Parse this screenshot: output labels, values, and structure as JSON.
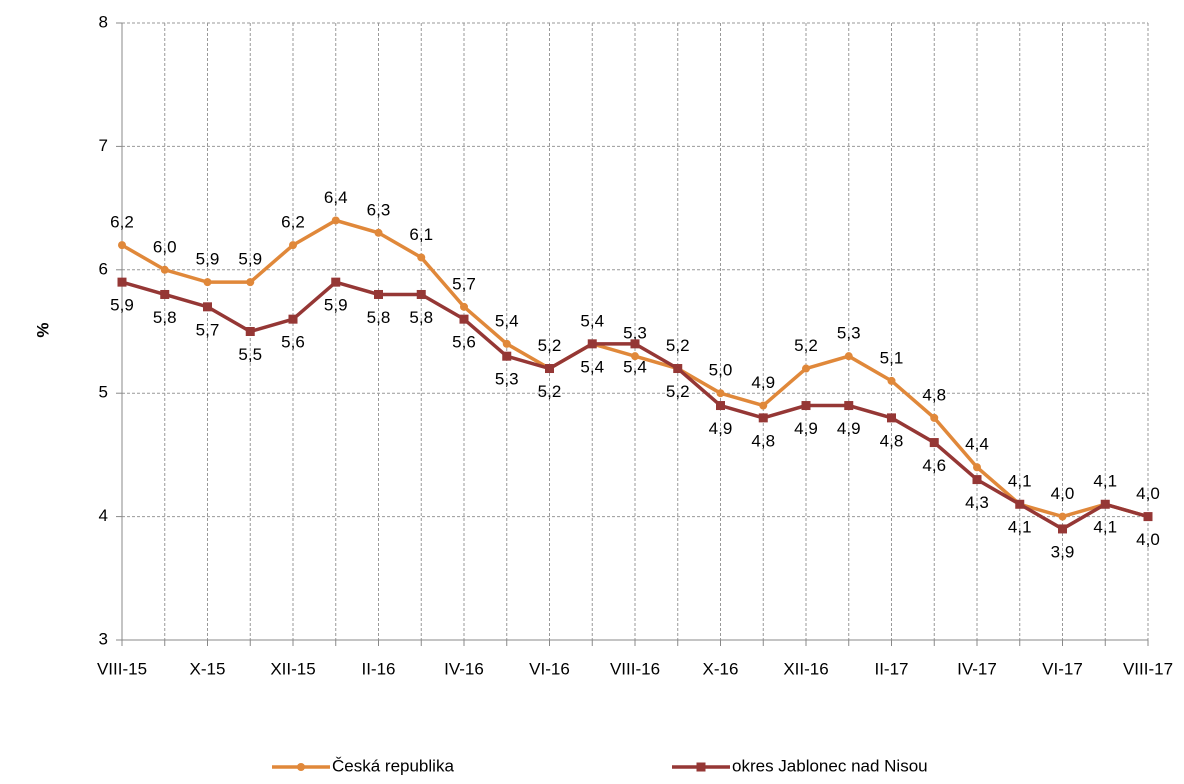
{
  "chart_data": {
    "type": "line",
    "y_label": "%",
    "categories": [
      "VIII-15",
      null,
      "X-15",
      null,
      "XII-15",
      null,
      "II-16",
      null,
      "IV-16",
      null,
      "VI-16",
      null,
      "VIII-16",
      null,
      "X-16",
      null,
      "XII-16",
      null,
      "II-17",
      null,
      "IV-17",
      null,
      "VI-17",
      null,
      "VIII-17"
    ],
    "series": [
      {
        "name": "Česká republika",
        "color": "#e0883a",
        "values": [
          6.2,
          6.0,
          5.9,
          5.9,
          6.2,
          6.4,
          6.3,
          6.1,
          5.7,
          5.4,
          5.2,
          5.4,
          5.3,
          5.2,
          5.0,
          4.9,
          5.2,
          5.3,
          5.1,
          4.8,
          4.4,
          4.1,
          4.0,
          4.1,
          4.0
        ],
        "value_labels": [
          "6,2",
          "6,0",
          "5,9",
          "5,9",
          "6,2",
          "6,4",
          "6,3",
          "6,1",
          "5,7",
          "5,4",
          "5,2",
          "5,4",
          "5,3",
          "5,2",
          "5,0",
          "4,9",
          "5,2",
          "5,3",
          "5,1",
          "4,8",
          "4,4",
          "4,1",
          "4,0",
          "4,1",
          "4,0"
        ],
        "marker": "circle",
        "label_position": "above"
      },
      {
        "name": "okres Jablonec nad Nisou",
        "color": "#953735",
        "values": [
          5.9,
          5.8,
          5.7,
          5.5,
          5.6,
          5.9,
          5.8,
          5.8,
          5.6,
          5.3,
          5.2,
          5.4,
          5.4,
          5.2,
          4.9,
          4.8,
          4.9,
          4.9,
          4.8,
          4.6,
          4.3,
          4.1,
          3.9,
          4.1,
          4.0
        ],
        "value_labels": [
          "5,9",
          "5,8",
          "5,7",
          "5,5",
          "5,6",
          "5,9",
          "5,8",
          "5,8",
          "5,6",
          "5,3",
          "5,2",
          "5,4",
          "5,4",
          "5,2",
          "4,9",
          "4,8",
          "4,9",
          "4,9",
          "4,8",
          "4,6",
          "4,3",
          "4,1",
          "3,9",
          "4,1",
          "4,0"
        ],
        "marker": "square",
        "label_position": "below"
      }
    ],
    "ylim": [
      3,
      8
    ],
    "yticks": [
      3,
      4,
      5,
      6,
      7,
      8
    ],
    "grid": true,
    "legend": "bottom"
  }
}
